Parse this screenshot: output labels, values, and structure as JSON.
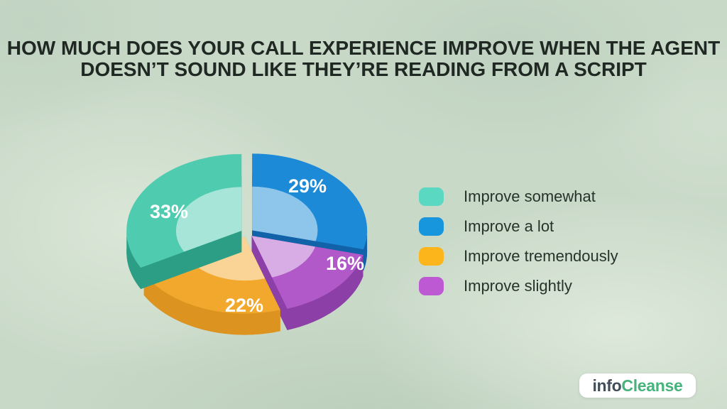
{
  "title": {
    "lines": [
      "HOW MUCH DOES YOUR CALL EXPERIENCE IMPROVE WHEN THE AGENT",
      "DOESN’T SOUND LIKE THEY’RE READING FROM A SCRIPT"
    ]
  },
  "chart_data": {
    "type": "pie",
    "style": "3d-exploded-pie-with-inner-highlight",
    "title": "How much does your call experience improve when the agent doesn’t sound like they’re reading from a script",
    "legend_position": "right",
    "start_angle_deg": 0,
    "clockwise_order": [
      "Improve a lot",
      "Improve slightly",
      "Improve tremendously",
      "Improve somewhat"
    ],
    "slices": [
      {
        "label": "Improve somewhat",
        "value": 33,
        "display": "33%",
        "color": "#4fcbb0",
        "side_color": "#2b9e85",
        "legend_color": "#5ad8c1"
      },
      {
        "label": "Improve a lot",
        "value": 29,
        "display": "29%",
        "color": "#1c8ad6",
        "side_color": "#1162a8",
        "legend_color": "#1795dd"
      },
      {
        "label": "Improve tremendously",
        "value": 22,
        "display": "22%",
        "color": "#f2a82d",
        "side_color": "#dd9320",
        "legend_color": "#fcb61b"
      },
      {
        "label": "Improve slightly",
        "value": 16,
        "display": "16%",
        "color": "#b159c9",
        "side_color": "#8c3fa6",
        "legend_color": "#bd5ad3"
      }
    ],
    "label_text_color": "#ffffff"
  },
  "branding": {
    "logo_part1": "info",
    "logo_part2": "Cleanse",
    "logo_color1": "#424d57",
    "logo_color2": "#46b27c"
  },
  "background_color": "#c9d9c8"
}
